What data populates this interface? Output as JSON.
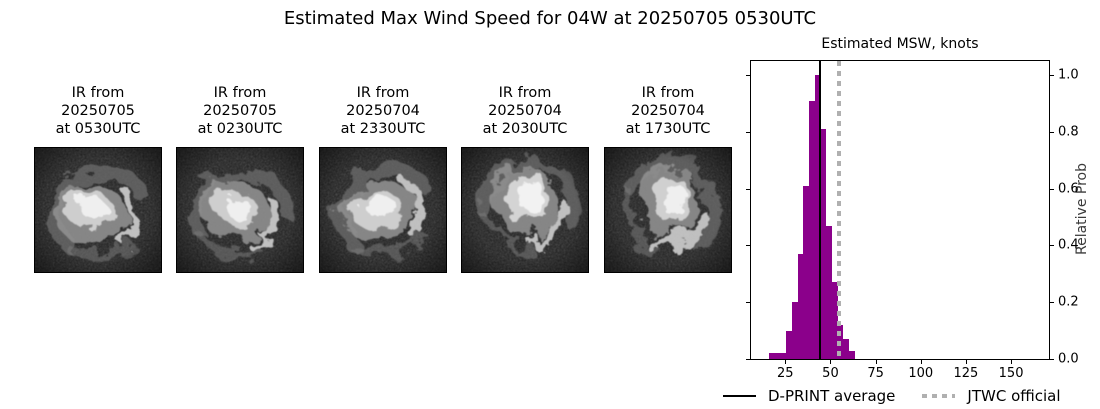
{
  "title": "Estimated Max Wind Speed for 04W at 20250705 0530UTC",
  "satellite_panels": [
    {
      "label_lines": [
        "IR from",
        "20250705",
        "at 0530UTC"
      ]
    },
    {
      "label_lines": [
        "IR from",
        "20250705",
        "at 0230UTC"
      ]
    },
    {
      "label_lines": [
        "IR from",
        "20250704",
        "at 2330UTC"
      ]
    },
    {
      "label_lines": [
        "IR from",
        "20250704",
        "at 2030UTC"
      ]
    },
    {
      "label_lines": [
        "IR from",
        "20250704",
        "at 1730UTC"
      ]
    }
  ],
  "chart_data": {
    "type": "bar",
    "title": "Estimated MSW, knots",
    "ylabel": "Relative Prob",
    "xlabel": "",
    "xlim": [
      6,
      171
    ],
    "ylim": [
      0,
      1.05
    ],
    "x_ticks": [
      25,
      50,
      75,
      100,
      125,
      150
    ],
    "y_ticks": [
      0.0,
      0.2,
      0.4,
      0.6,
      0.8,
      1.0
    ],
    "grid": false,
    "bar_color": "#8B008B",
    "bins": {
      "edges": [
        15.9,
        19.1,
        22.3,
        25.4,
        28.6,
        31.8,
        35.0,
        38.1,
        41.3,
        44.4,
        47.6,
        50.8,
        53.9,
        57.1,
        60.3,
        63.4
      ],
      "heights": [
        0.02,
        0.02,
        0.02,
        0.1,
        0.2,
        0.37,
        0.61,
        0.91,
        1.0,
        0.81,
        0.47,
        0.27,
        0.12,
        0.07,
        0.03
      ]
    },
    "vlines": [
      {
        "label": "D-PRINT average",
        "x": 44,
        "color": "#000000",
        "style": "solid"
      },
      {
        "label": "JTWC official",
        "x": 55,
        "color": "#b0b0b0",
        "style": "dotted"
      }
    ],
    "legend_position": "below"
  }
}
